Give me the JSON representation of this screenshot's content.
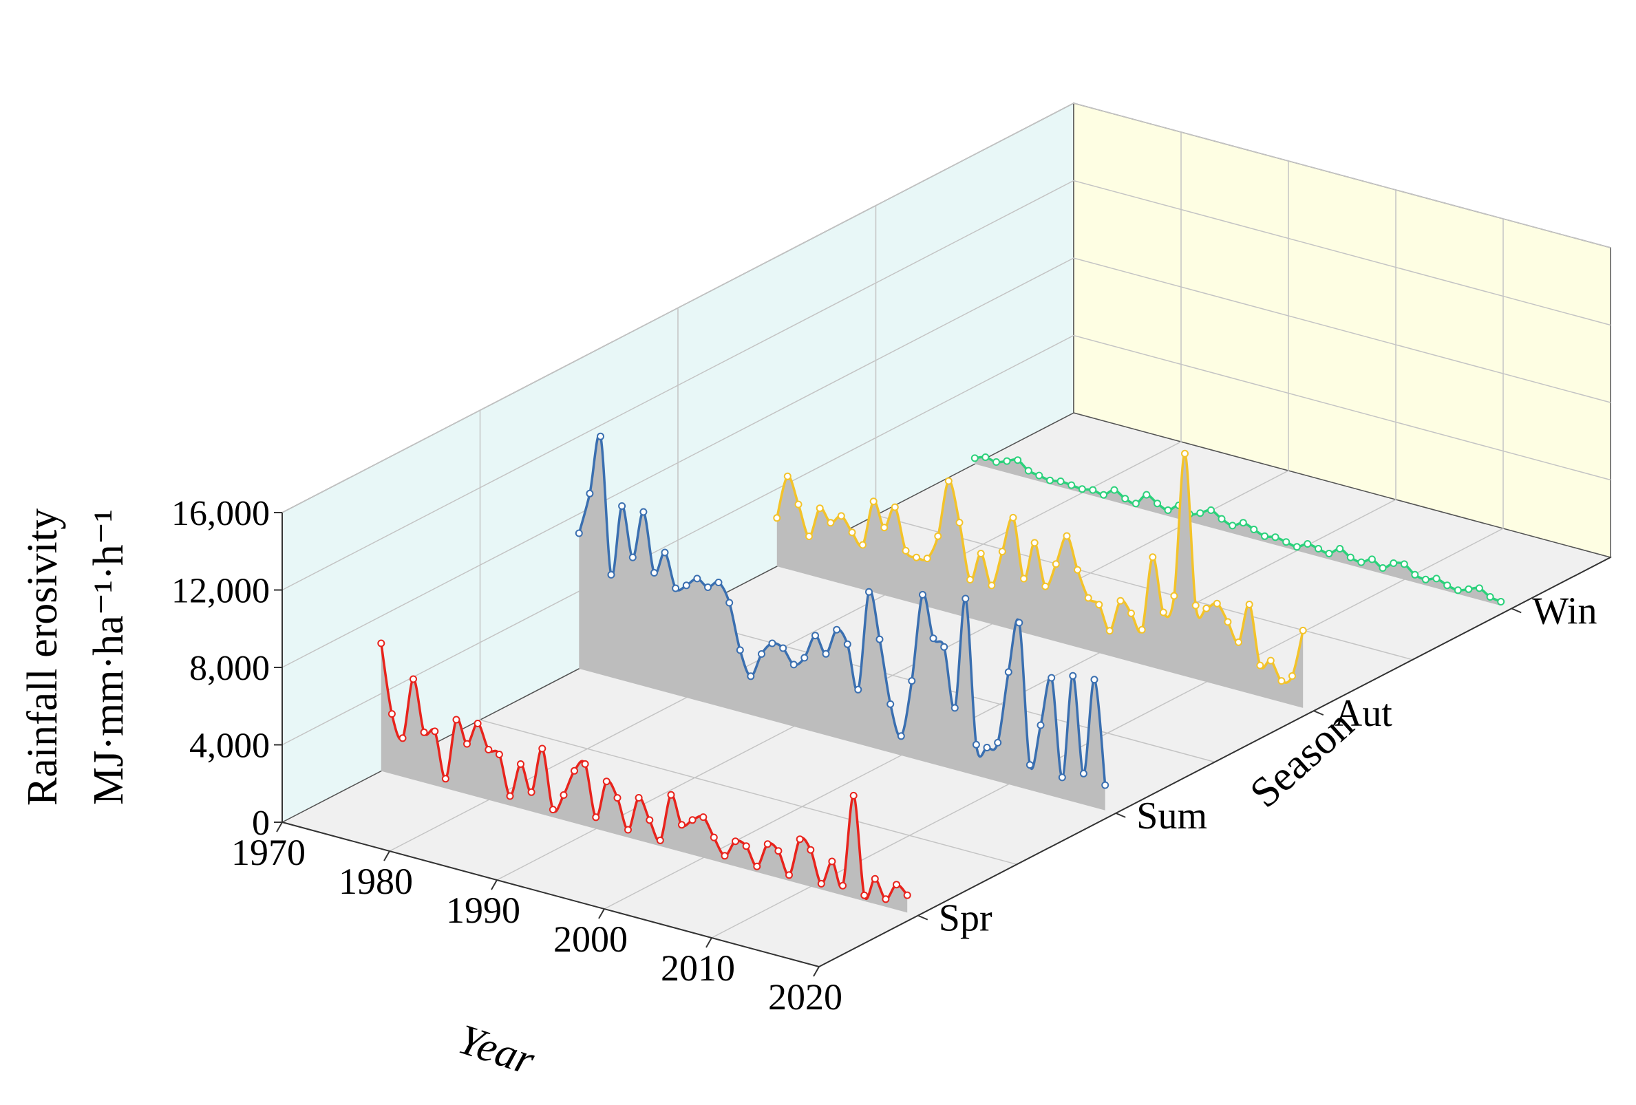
{
  "chart_data": {
    "type": "area",
    "title": "",
    "xlabel": "Year",
    "ylabel": "Rainfall erosivity",
    "ylabel_unit": "MJ·mm·ha⁻¹·h⁻¹",
    "zlabel": "Season",
    "ylim": [
      0,
      16000
    ],
    "y_ticks": [
      0,
      4000,
      8000,
      12000,
      16000
    ],
    "y_tick_labels": [
      "0",
      "4,000",
      "8,000",
      "12,000",
      "16,000"
    ],
    "x_ticks": [
      1970,
      1980,
      1990,
      2000,
      2010,
      2020
    ],
    "x_tick_labels": [
      "1970",
      "1980",
      "1990",
      "2000",
      "2010",
      "2020"
    ],
    "seasons": [
      "Spr",
      "Sum",
      "Aut",
      "Win"
    ],
    "x": [
      1970,
      1971,
      1972,
      1973,
      1974,
      1975,
      1976,
      1977,
      1978,
      1979,
      1980,
      1981,
      1982,
      1983,
      1984,
      1985,
      1986,
      1987,
      1988,
      1989,
      1990,
      1991,
      1992,
      1993,
      1994,
      1995,
      1996,
      1997,
      1998,
      1999,
      2000,
      2001,
      2002,
      2003,
      2004,
      2005,
      2006,
      2007,
      2008,
      2009,
      2010,
      2011,
      2012,
      2013,
      2014,
      2015,
      2016,
      2017,
      2018,
      2019
    ],
    "series": [
      {
        "name": "Spr",
        "color": "#e8231c",
        "values": [
          6600,
          3100,
          2000,
          5200,
          2600,
          2800,
          500,
          3700,
          2600,
          3800,
          2600,
          2500,
          500,
          2300,
          1000,
          3400,
          400,
          1300,
          2700,
          3200,
          600,
          2600,
          1900,
          400,
          2200,
          1200,
          300,
          2800,
          1400,
          1800,
          2100,
          1200,
          400,
          1300,
          1200,
          300,
          1600,
          1400,
          300,
          2300,
          1900,
          300,
          1600,
          500,
          5300,
          300,
          1300,
          400,
          1300,
          900
        ]
      },
      {
        "name": "Sum",
        "color": "#3a6fb0",
        "values": [
          7000,
          9200,
          12300,
          5300,
          9000,
          6500,
          9000,
          6000,
          7200,
          5500,
          5800,
          6300,
          6000,
          6400,
          5500,
          3200,
          2000,
          3300,
          4000,
          3900,
          3200,
          3700,
          5000,
          4200,
          5600,
          5000,
          2800,
          8000,
          5700,
          2500,
          1000,
          4000,
          8600,
          6500,
          6200,
          3200,
          9000,
          1600,
          1600,
          2000,
          5800,
          8500,
          1300,
          3500,
          6100,
          1100,
          6500,
          1600,
          6600,
          1300
        ]
      },
      {
        "name": "Aut",
        "color": "#f3c32a",
        "values": [
          2500,
          4800,
          3500,
          2000,
          3600,
          3000,
          3500,
          2800,
          2300,
          4700,
          3500,
          4700,
          2600,
          2400,
          2500,
          3800,
          6800,
          4800,
          2000,
          3500,
          2000,
          3900,
          5800,
          2800,
          4800,
          2700,
          4000,
          5600,
          4000,
          2700,
          2500,
          1300,
          3000,
          2500,
          1800,
          5700,
          3000,
          4000,
          11500,
          3800,
          3800,
          4200,
          3400,
          2500,
          4600,
          1600,
          2000,
          1100,
          1500,
          4000
        ]
      },
      {
        "name": "Win",
        "color": "#2bd17b",
        "values": [
          300,
          500,
          400,
          600,
          800,
          400,
          300,
          200,
          300,
          250,
          200,
          300,
          200,
          600,
          300,
          200,
          800,
          500,
          300,
          700,
          400,
          600,
          900,
          600,
          400,
          700,
          500,
          300,
          400,
          300,
          200,
          500,
          400,
          300,
          700,
          400,
          300,
          600,
          300,
          700,
          800,
          400,
          300,
          500,
          300,
          200,
          400,
          600,
          300,
          200
        ]
      }
    ]
  }
}
